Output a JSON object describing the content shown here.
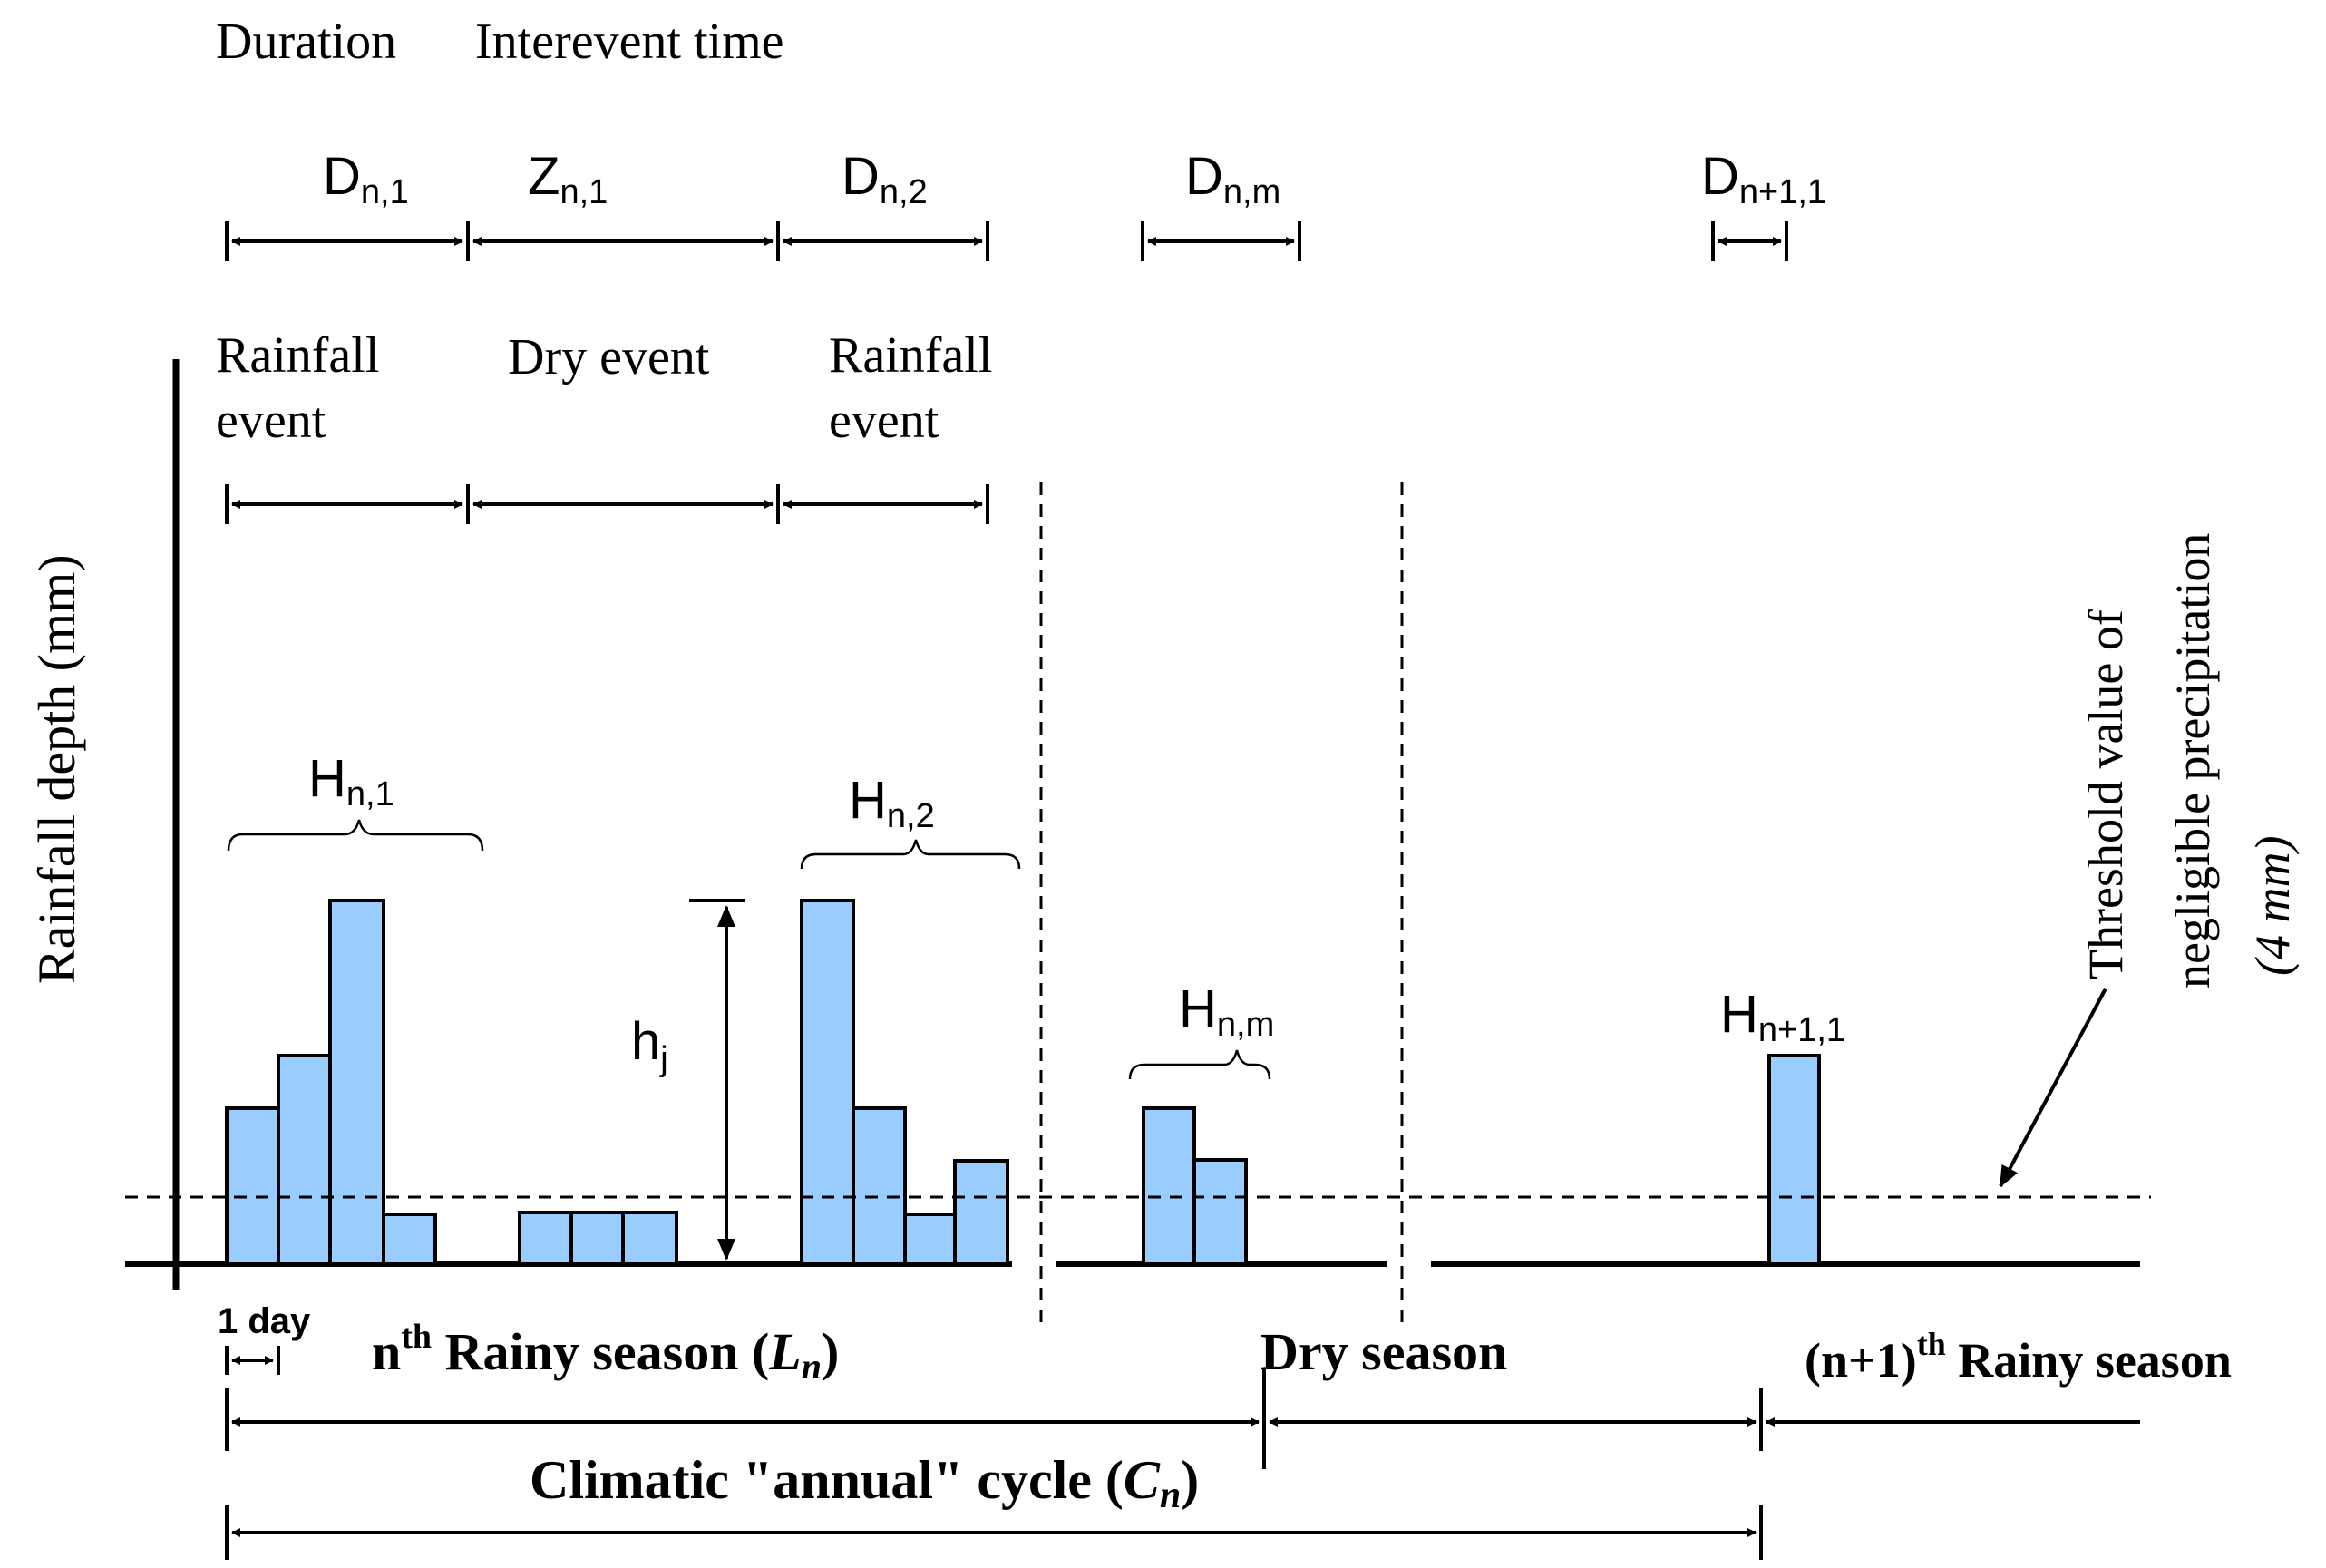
{
  "header": {
    "duration_label": "Duration",
    "interevent_label": "Interevent time"
  },
  "durations": {
    "d_n1": {
      "base": "D",
      "sub": "n,1"
    },
    "z_n1": {
      "base": "Z",
      "sub": "n,1"
    },
    "d_n2": {
      "base": "D",
      "sub": "n,2"
    },
    "d_nm": {
      "base": "D",
      "sub": "n,m"
    },
    "d_n11": {
      "base": "D",
      "sub": "n+1,1"
    }
  },
  "events": {
    "rainfall_event_1_line1": "Rainfall",
    "rainfall_event_1_line2": "event",
    "dry_event": "Dry event",
    "rainfall_event_2_line1": "Rainfall",
    "rainfall_event_2_line2": "event"
  },
  "y_axis_label": "Rainfall depth (mm)",
  "heights": {
    "h_n1": {
      "base": "H",
      "sub": "n,1"
    },
    "h_n2": {
      "base": "H",
      "sub": "n,2"
    },
    "h_nm": {
      "base": "H",
      "sub": "n,m"
    },
    "h_n11": {
      "base": "H",
      "sub": "n+1,1"
    },
    "h_j": {
      "base": "h",
      "sub": "j"
    }
  },
  "threshold": {
    "line1": "Threshold value of",
    "line2": "negligible precipitation",
    "line3": "(4 mm)"
  },
  "bottom": {
    "one_day": "1 day",
    "nth_rainy_prefix": "n",
    "nth_rainy_sup": "th",
    "nth_rainy_text": " Rainy season (",
    "nth_rainy_var": "L",
    "nth_rainy_var_sub": "n",
    "nth_rainy_close": ")",
    "dry_season": "Dry season",
    "next_rainy_prefix": "(n+1)",
    "next_rainy_sup": "th",
    "next_rainy_text": " Rainy season",
    "cycle_text": "Climatic \"annual\" cycle (",
    "cycle_var": "C",
    "cycle_var_sub": "n",
    "cycle_close": ")"
  },
  "colors": {
    "bar_fill": "#99ccff",
    "line": "#000000"
  }
}
